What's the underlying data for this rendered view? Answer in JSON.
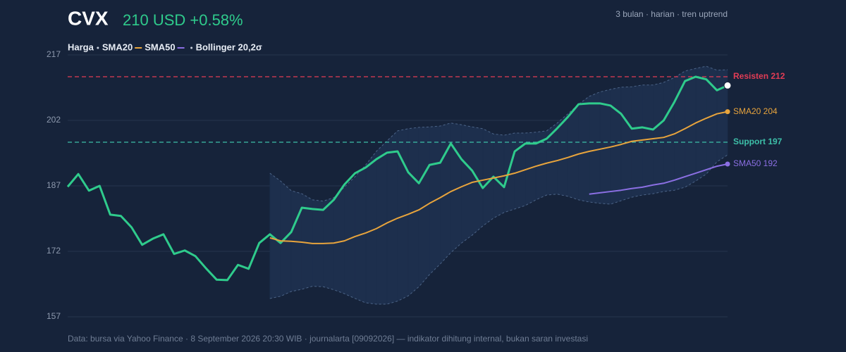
{
  "chart_data": {
    "type": "line",
    "title": "CVX",
    "subtitle": "210 USD +0.58%",
    "note": "3 bulan · harian · tren uptrend",
    "footer": "Data: bursa via Yahoo Finance · 8 September 2026 20:30 WIB · journalarta [09092026] — indikator dihitung internal, bukan saran investasi",
    "ylim": [
      157,
      217
    ],
    "yticks": [
      157,
      172,
      187,
      202,
      217
    ],
    "grid": true,
    "series": [
      {
        "name": "Harga",
        "color": "#2fcb8c",
        "values": [
          186.8,
          189.7,
          185.9,
          187,
          180.4,
          180.1,
          177.5,
          173.5,
          174.9,
          175.9,
          171.4,
          172.2,
          170.9,
          168.1,
          165.5,
          165.4,
          168.9,
          168,
          173.9,
          175.9,
          173.9,
          176.4,
          182,
          181.7,
          181.5,
          183.8,
          187.3,
          189.9,
          191.2,
          193.1,
          194.6,
          194.9,
          190.1,
          187.6,
          191.8,
          192.3,
          196.7,
          193.1,
          190.5,
          186.5,
          189.1,
          186.7,
          194.9,
          196.7,
          196.7,
          197.8,
          200.2,
          202.8,
          205.7,
          205.9,
          205.9,
          205.4,
          203.5,
          200.1,
          200.4,
          199.9,
          202,
          206.2,
          211,
          212,
          211.4,
          208.9,
          210
        ]
      },
      {
        "name": "SMA20",
        "color": "#e8a43c",
        "end_label": "SMA20 204",
        "values": [
          null,
          null,
          null,
          null,
          null,
          null,
          null,
          null,
          null,
          null,
          null,
          null,
          null,
          null,
          null,
          null,
          null,
          null,
          null,
          175.1,
          174.4,
          174.3,
          174.1,
          173.8,
          173.8,
          173.9,
          174.4,
          175.4,
          176.2,
          177.2,
          178.5,
          179.6,
          180.5,
          181.5,
          183,
          184.3,
          185.7,
          186.8,
          187.8,
          188.3,
          188.8,
          189.3,
          189.9,
          190.7,
          191.5,
          192.2,
          192.8,
          193.5,
          194.3,
          194.9,
          195.4,
          195.9,
          196.5,
          197.2,
          197.5,
          197.8,
          198.1,
          198.9,
          200.1,
          201.4,
          202.5,
          203.5,
          204
        ]
      },
      {
        "name": "SMA50",
        "color": "#8b6fe3",
        "end_label": "SMA50 192",
        "values": [
          null,
          null,
          null,
          null,
          null,
          null,
          null,
          null,
          null,
          null,
          null,
          null,
          null,
          null,
          null,
          null,
          null,
          null,
          null,
          null,
          null,
          null,
          null,
          null,
          null,
          null,
          null,
          null,
          null,
          null,
          null,
          null,
          null,
          null,
          null,
          null,
          null,
          null,
          null,
          null,
          null,
          null,
          null,
          null,
          null,
          null,
          null,
          null,
          null,
          185.1,
          185.4,
          185.7,
          186,
          186.4,
          186.7,
          187.2,
          187.6,
          188.3,
          189.1,
          189.9,
          190.7,
          191.5,
          192
        ]
      }
    ],
    "bollinger": {
      "name": "Bollinger 20,2σ",
      "color": "#4d6588",
      "fill": "#1d2f4d",
      "upper": [
        null,
        null,
        null,
        null,
        null,
        null,
        null,
        null,
        null,
        null,
        null,
        null,
        null,
        null,
        null,
        null,
        null,
        null,
        null,
        189.9,
        188.1,
        185.9,
        185.2,
        183.8,
        183.5,
        184.3,
        186.7,
        189.1,
        191.8,
        194.9,
        197.3,
        199.6,
        200.1,
        200.4,
        200.5,
        200.7,
        201.4,
        201,
        200.5,
        200.1,
        198.9,
        198.6,
        199.1,
        199.1,
        199.3,
        199.6,
        201.4,
        203.5,
        205.7,
        207.5,
        208.5,
        209.1,
        209.6,
        209.7,
        210.1,
        210.1,
        210.7,
        211.8,
        213.3,
        213.9,
        214.4,
        213.5,
        213.6
      ],
      "lower": [
        null,
        null,
        null,
        null,
        null,
        null,
        null,
        null,
        null,
        null,
        null,
        null,
        null,
        null,
        null,
        null,
        null,
        null,
        null,
        161.2,
        161.7,
        162.8,
        163.3,
        164,
        163.9,
        163.2,
        162.3,
        161.2,
        160.2,
        159.9,
        159.9,
        160.6,
        161.8,
        163.9,
        166.7,
        169.1,
        171.7,
        173.9,
        175.7,
        177.8,
        179.6,
        180.9,
        181.7,
        182.5,
        183.8,
        184.9,
        185.1,
        184.6,
        183.8,
        183.3,
        183,
        182.8,
        183.6,
        184.4,
        184.9,
        185.2,
        185.7,
        186,
        186.7,
        188.1,
        189.7,
        192.5,
        194.1
      ]
    },
    "reference_lines": [
      {
        "label": "Resisten 212",
        "value": 212,
        "color": "#e23c55"
      },
      {
        "label": "Support 197",
        "value": 197,
        "color": "#3dbfa8"
      }
    ]
  }
}
